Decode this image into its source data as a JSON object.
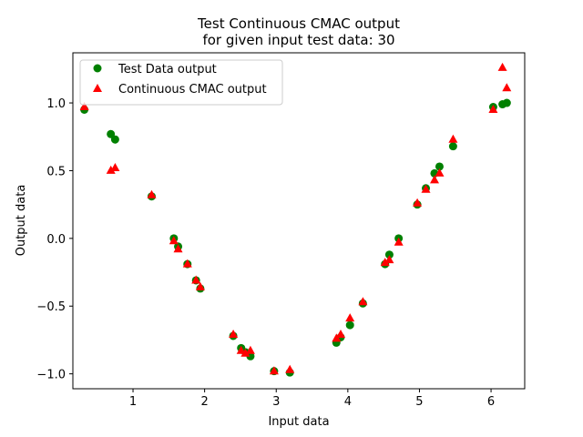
{
  "chart_data": {
    "type": "scatter",
    "title_line1": "Test Continuous CMAC output",
    "title_line2": "for given input test data: 30",
    "xlabel": "Input data",
    "ylabel": "Output data",
    "xlim": [
      0.16,
      6.47
    ],
    "ylim": [
      -1.11,
      1.37
    ],
    "x_ticks": [
      {
        "value": 1,
        "label": "1"
      },
      {
        "value": 2,
        "label": "2"
      },
      {
        "value": 3,
        "label": "3"
      },
      {
        "value": 4,
        "label": "4"
      },
      {
        "value": 5,
        "label": "5"
      },
      {
        "value": 6,
        "label": "6"
      }
    ],
    "y_ticks": [
      {
        "value": -1.0,
        "label": "−1.0"
      },
      {
        "value": -0.5,
        "label": "−0.5"
      },
      {
        "value": 0.0,
        "label": "0.0"
      },
      {
        "value": 0.5,
        "label": "0.5"
      },
      {
        "value": 1.0,
        "label": "1.0"
      }
    ],
    "grid": false,
    "legend_position": "top-left",
    "series": [
      {
        "name": "Test Data output",
        "color": "#008000",
        "marker": "circle",
        "points": [
          [
            0.32,
            0.95
          ],
          [
            0.69,
            0.77
          ],
          [
            0.75,
            0.73
          ],
          [
            1.26,
            0.31
          ],
          [
            1.57,
            0.0
          ],
          [
            1.63,
            -0.06
          ],
          [
            1.76,
            -0.19
          ],
          [
            1.88,
            -0.31
          ],
          [
            1.94,
            -0.37
          ],
          [
            2.4,
            -0.72
          ],
          [
            2.51,
            -0.81
          ],
          [
            2.57,
            -0.84
          ],
          [
            2.64,
            -0.87
          ],
          [
            2.97,
            -0.98
          ],
          [
            3.19,
            -0.99
          ],
          [
            3.84,
            -0.77
          ],
          [
            3.9,
            -0.73
          ],
          [
            4.03,
            -0.64
          ],
          [
            4.21,
            -0.48
          ],
          [
            4.52,
            -0.19
          ],
          [
            4.58,
            -0.12
          ],
          [
            4.71,
            0.0
          ],
          [
            4.97,
            0.25
          ],
          [
            5.09,
            0.37
          ],
          [
            5.21,
            0.48
          ],
          [
            5.28,
            0.53
          ],
          [
            5.47,
            0.68
          ],
          [
            6.03,
            0.97
          ],
          [
            6.16,
            0.99
          ],
          [
            6.22,
            1.0
          ]
        ]
      },
      {
        "name": "Continuous CMAC output",
        "color": "#ff0000",
        "marker": "triangle",
        "points": [
          [
            0.32,
            0.97
          ],
          [
            0.69,
            0.5
          ],
          [
            0.75,
            0.52
          ],
          [
            1.26,
            0.32
          ],
          [
            1.57,
            -0.02
          ],
          [
            1.63,
            -0.08
          ],
          [
            1.76,
            -0.19
          ],
          [
            1.88,
            -0.31
          ],
          [
            1.94,
            -0.36
          ],
          [
            2.4,
            -0.71
          ],
          [
            2.51,
            -0.83
          ],
          [
            2.57,
            -0.85
          ],
          [
            2.64,
            -0.83
          ],
          [
            2.97,
            -0.98
          ],
          [
            3.19,
            -0.97
          ],
          [
            3.84,
            -0.74
          ],
          [
            3.9,
            -0.71
          ],
          [
            4.03,
            -0.59
          ],
          [
            4.21,
            -0.47
          ],
          [
            4.52,
            -0.18
          ],
          [
            4.58,
            -0.16
          ],
          [
            4.71,
            -0.03
          ],
          [
            4.97,
            0.26
          ],
          [
            5.09,
            0.36
          ],
          [
            5.21,
            0.43
          ],
          [
            5.28,
            0.48
          ],
          [
            5.47,
            0.73
          ],
          [
            6.03,
            0.95
          ],
          [
            6.16,
            1.26
          ],
          [
            6.22,
            1.11
          ]
        ]
      }
    ]
  }
}
